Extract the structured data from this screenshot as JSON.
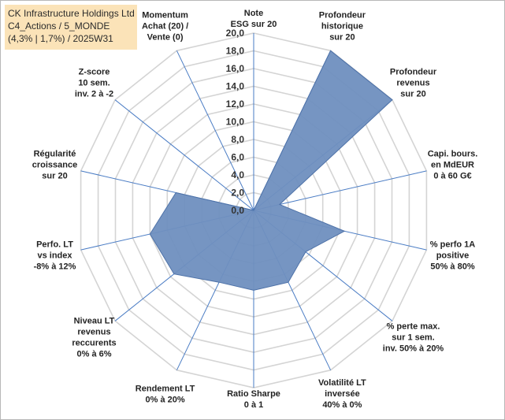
{
  "title_box": {
    "line1": "CK Infrastructure Holdings Ltd",
    "line2": "C4_Actions / 5_MONDE",
    "line3": "(4,3% | 1,7%) / 2025W31"
  },
  "chart_data": {
    "type": "radar",
    "rmin": 0,
    "rmax": 20,
    "tick_step": 2,
    "tick_labels": [
      "0,0",
      "2,0",
      "4,0",
      "6,0",
      "8,0",
      "10,0",
      "12,0",
      "14,0",
      "16,0",
      "18,0",
      "20,0"
    ],
    "grid": true,
    "colors": {
      "fill": "#6f8fbf",
      "stroke": "#4e72a8",
      "grid": "#d4d4d4",
      "spoke": "#4a7cc4"
    },
    "axes": [
      {
        "label": [
          "Note",
          "ESG sur 20"
        ],
        "value": 0
      },
      {
        "label": [
          "Profondeur",
          "historique",
          "sur 20"
        ],
        "value": 20
      },
      {
        "label": [
          "Profondeur",
          "revenus",
          "sur 20"
        ],
        "value": 20
      },
      {
        "label": [
          "Capi. bours.",
          "en MdEUR",
          "0 à 60 G€"
        ],
        "value": 3
      },
      {
        "label": [
          "% perfo 1A",
          "positive",
          "50% à 80%"
        ],
        "value": 10.5
      },
      {
        "label": [
          "% perte max.",
          "sur 1 sem.",
          "inv. 50% à 20%"
        ],
        "value": 7.5
      },
      {
        "label": [
          "Volatilité LT",
          "inversée",
          "40% à 0%"
        ],
        "value": 9
      },
      {
        "label": [
          "Ratio Sharpe",
          "0 à 1"
        ],
        "value": 9
      },
      {
        "label": [
          "Rendement LT",
          "0% à 20%"
        ],
        "value": 9
      },
      {
        "label": [
          "Niveau LT",
          "revenus",
          "reccurents",
          "0% à 6%"
        ],
        "value": 11.5
      },
      {
        "label": [
          "Perfo. LT",
          "vs index",
          "-8% à 12%"
        ],
        "value": 12
      },
      {
        "label": [
          "Régularité",
          "croissance",
          "sur 20"
        ],
        "value": 9
      },
      {
        "label": [
          "Z-score",
          "10 sem.",
          "inv. 2 à -2"
        ],
        "value": 0
      },
      {
        "label": [
          "Momentum",
          "Achat (20) /",
          "Vente (0)"
        ],
        "value": 0
      }
    ]
  }
}
